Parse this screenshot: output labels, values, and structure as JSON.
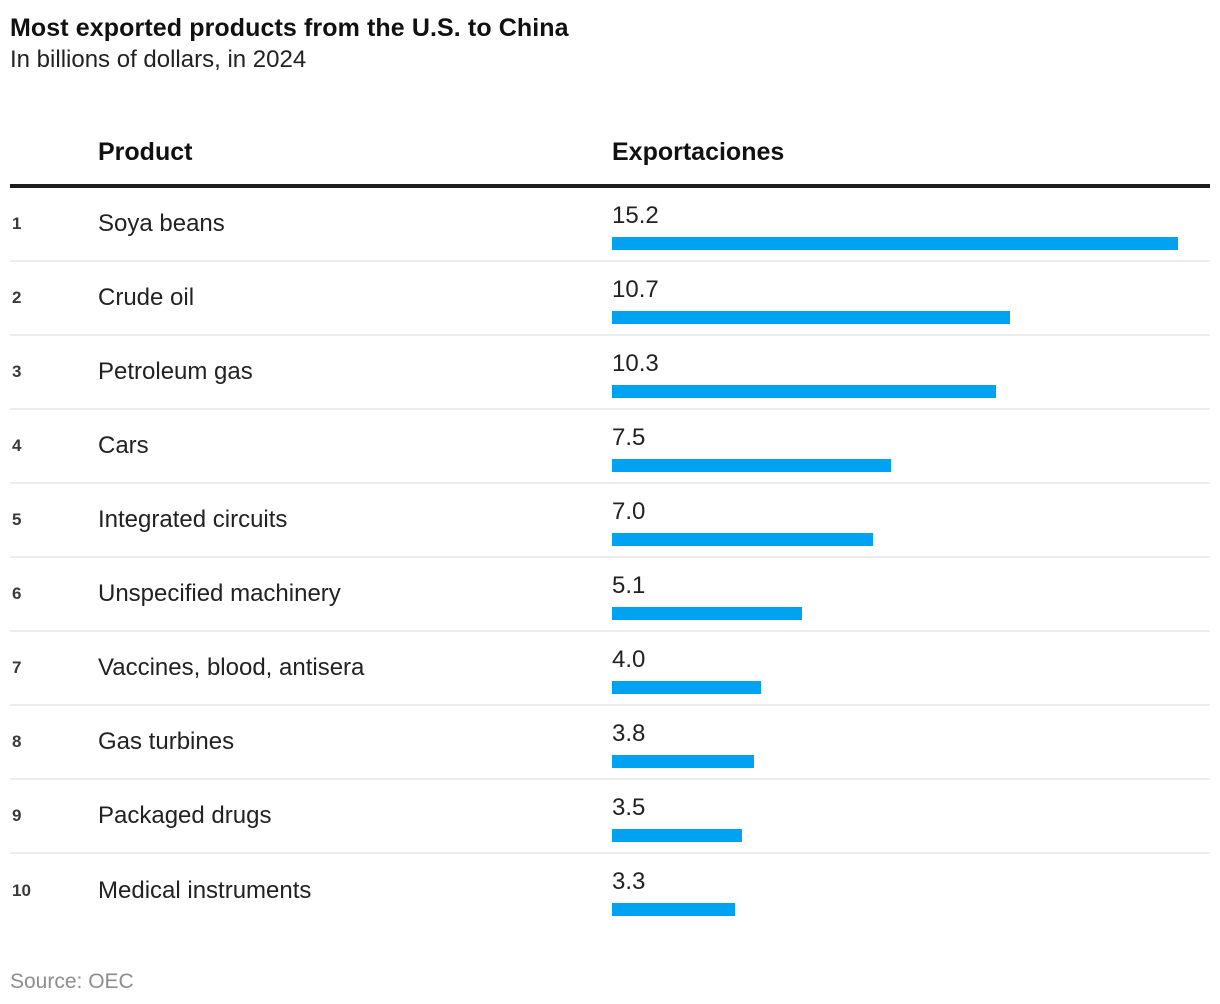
{
  "header": {
    "title": "Most exported products from the U.S. to China",
    "subtitle": "In billions of dollars, in 2024"
  },
  "table": {
    "product_column_label": "Product",
    "value_column_label": "Exportaciones"
  },
  "chart_data": {
    "type": "bar",
    "orientation": "horizontal",
    "title": "Most exported products from the U.S. to China",
    "subtitle": "In billions of dollars, in 2024",
    "xlabel": "Exportaciones",
    "ylabel": "Product",
    "categories": [
      "Soya beans",
      "Crude oil",
      "Petroleum gas",
      "Cars",
      "Integrated circuits",
      "Unspecified machinery",
      "Vaccines, blood, antisera",
      "Gas turbines",
      "Packaged drugs",
      "Medical instruments"
    ],
    "ranks": [
      "1",
      "2",
      "3",
      "4",
      "5",
      "6",
      "7",
      "8",
      "9",
      "10"
    ],
    "values": [
      15.2,
      10.7,
      10.3,
      7.5,
      7.0,
      5.1,
      4.0,
      3.8,
      3.5,
      3.3
    ],
    "value_labels": [
      "15.2",
      "10.7",
      "10.3",
      "7.5",
      "7.0",
      "5.1",
      "4.0",
      "3.8",
      "3.5",
      "3.3"
    ],
    "xlim": [
      0,
      15.2
    ],
    "grid": false,
    "legend": false,
    "bar_color": "#00A2F2"
  },
  "footer": {
    "source": "Source: OEC"
  },
  "colors": {
    "bar": "#00A2F2",
    "divider": "#ececec",
    "header_rule": "#1d1d1d",
    "source_text": "#8e8e8e"
  }
}
